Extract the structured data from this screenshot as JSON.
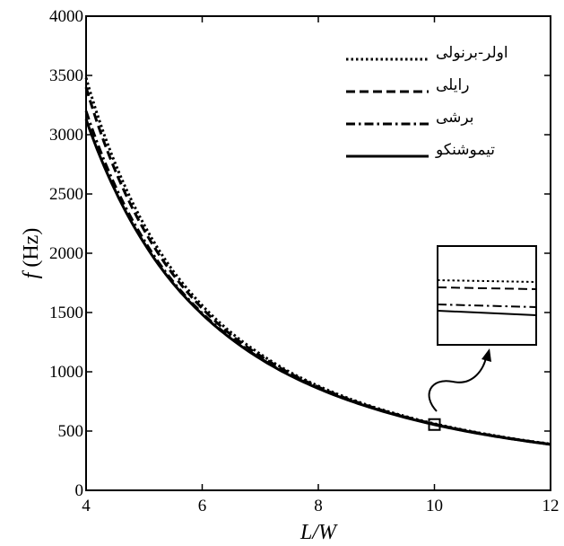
{
  "chart_data": {
    "type": "line",
    "xlabel": "L/W",
    "ylabel_symbol": "f",
    "ylabel_unit": "(Hz)",
    "xlim": [
      4,
      12
    ],
    "ylim": [
      0,
      4000
    ],
    "xticks": [
      "4",
      "6",
      "8",
      "10",
      "12"
    ],
    "yticks": [
      "0",
      "500",
      "1000",
      "1500",
      "2000",
      "2500",
      "3000",
      "3500",
      "4000"
    ],
    "grid": false,
    "legend_position": "top-right",
    "x": [
      4,
      4.5,
      5,
      5.5,
      6,
      6.5,
      7,
      7.5,
      8,
      8.5,
      9,
      9.5,
      10,
      10.5,
      11,
      11.5,
      12
    ],
    "series": [
      {
        "name": "اولر-برنولی",
        "style": "dotted",
        "values": [
          3480,
          2760,
          2240,
          1850,
          1560,
          1330,
          1150,
          1000,
          880,
          780,
          695,
          624,
          562,
          510,
          465,
          425,
          391
        ]
      },
      {
        "name": "رایلی",
        "style": "dashed",
        "values": [
          3400,
          2700,
          2195,
          1820,
          1535,
          1310,
          1135,
          990,
          872,
          773,
          690,
          620,
          558,
          507,
          462,
          423,
          389
        ]
      },
      {
        "name": "برشی",
        "style": "dash-dot",
        "values": [
          3200,
          2570,
          2110,
          1760,
          1495,
          1285,
          1115,
          976,
          862,
          766,
          685,
          616,
          556,
          505,
          460,
          422,
          388
        ]
      },
      {
        "name": "تیموشنکو",
        "style": "solid",
        "values": [
          3130,
          2530,
          2085,
          1745,
          1485,
          1278,
          1110,
          972,
          859,
          764,
          683,
          614,
          554,
          503,
          459,
          421,
          387
        ]
      }
    ],
    "inset": {
      "marker_x": 10,
      "marker_y": 555
    }
  }
}
